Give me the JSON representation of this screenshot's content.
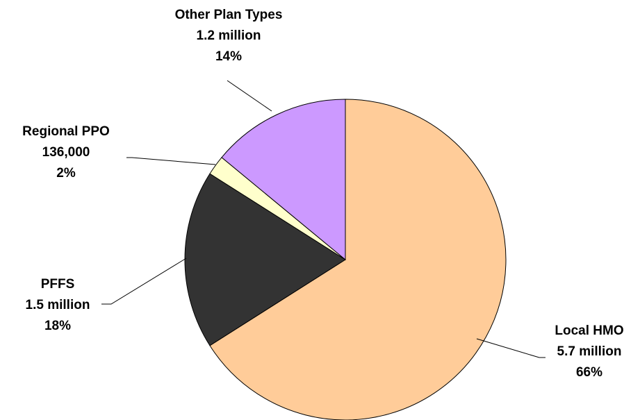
{
  "chart_data": {
    "type": "pie",
    "start_angle_deg": 0,
    "direction": "clockwise",
    "slices": [
      {
        "category": "Local HMO",
        "amount": "5.7 million",
        "percent_label": "66%",
        "value": 66,
        "color": "#FFCC99"
      },
      {
        "category": "PFFS",
        "amount": "1.5 million",
        "percent_label": "18%",
        "value": 18,
        "color": "#333333"
      },
      {
        "category": "Regional PPO",
        "amount": "136,000",
        "percent_label": "2%",
        "value": 2,
        "color": "#FFFFCC"
      },
      {
        "category": "Other Plan Types",
        "amount": "1.2 million",
        "percent_label": "14%",
        "value": 14,
        "color": "#CC99FF"
      }
    ]
  }
}
